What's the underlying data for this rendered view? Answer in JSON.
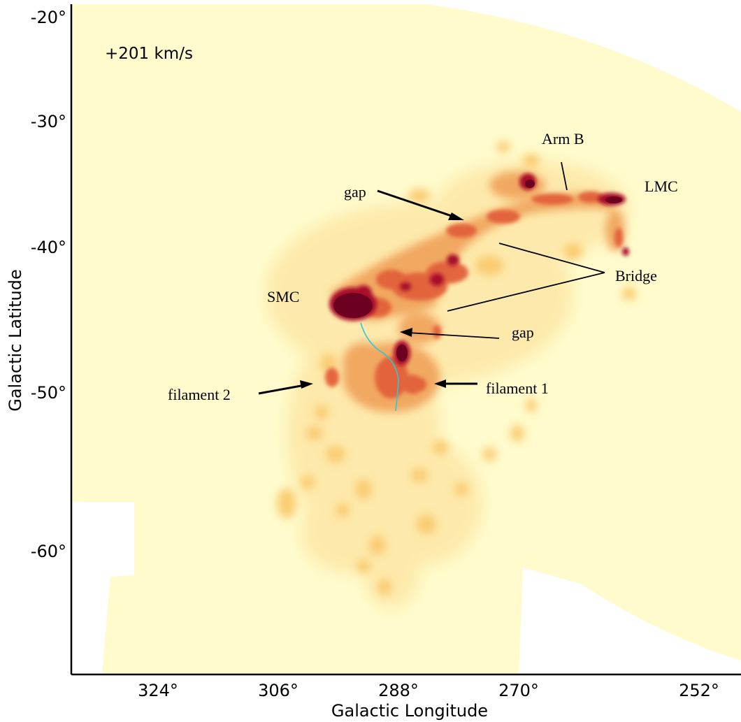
{
  "map": {
    "velocity_label": "+201 km/s",
    "x_axis_title": "Galactic Longitude",
    "y_axis_title": "Galactic Latitude",
    "x_ticks": [
      {
        "label": "324°",
        "value": 324
      },
      {
        "label": "306°",
        "value": 306
      },
      {
        "label": "288°",
        "value": 288
      },
      {
        "label": "270°",
        "value": 270
      },
      {
        "label": "252°",
        "value": 252
      }
    ],
    "y_ticks": [
      {
        "label": "-20°",
        "value": -20
      },
      {
        "label": "-30°",
        "value": -30
      },
      {
        "label": "-40°",
        "value": -40
      },
      {
        "label": "-50°",
        "value": -50
      },
      {
        "label": "-60°",
        "value": -60
      }
    ],
    "annotations": {
      "arm_b": "Arm B",
      "lmc": "LMC",
      "gap_upper": "gap",
      "bridge": "Bridge",
      "smc": "SMC",
      "gap_lower": "gap",
      "filament_1": "filament 1",
      "filament_2": "filament 2"
    },
    "colors": {
      "background_fill": "#fffbcc",
      "emission_faint": "#fbd27a",
      "emission_mid": "#e2603a",
      "emission_strong": "#a8102a",
      "emission_peak": "#6b0020",
      "cyan_line": "#2ec7d8"
    }
  }
}
